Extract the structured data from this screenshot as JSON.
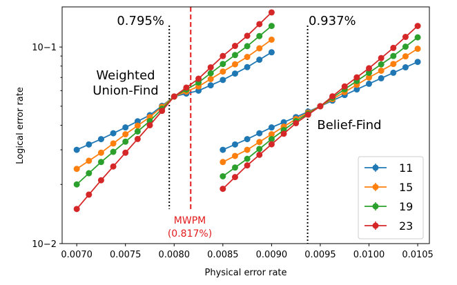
{
  "chart_data": {
    "type": "line",
    "xlabel": "Physical error rate",
    "ylabel": "Logical error rate",
    "xlim": [
      0.00685,
      0.01062
    ],
    "ylim": [
      0.01,
      0.16
    ],
    "yscale": "log",
    "xticks": [
      0.007,
      0.0075,
      0.008,
      0.0085,
      0.009,
      0.0095,
      0.01,
      0.0105
    ],
    "xtick_labels": [
      "0.0070",
      "0.0075",
      "0.0080",
      "0.0085",
      "0.0090",
      "0.0095",
      "0.0100",
      "0.0105"
    ],
    "ytick_labels": [
      "10−2",
      "10−1"
    ],
    "yticks": [
      0.01,
      0.1
    ],
    "legend_position": "lower-right",
    "series": [
      {
        "name": "11",
        "color": "#1f77b4"
      },
      {
        "name": "15",
        "color": "#ff7f0e"
      },
      {
        "name": "19",
        "color": "#2ca02c"
      },
      {
        "name": "23",
        "color": "#d62728"
      }
    ],
    "groups": [
      {
        "label": "Weighted Union-Find",
        "x": [
          0.007,
          0.00725,
          0.0075,
          0.00775,
          0.008,
          0.00825,
          0.0085,
          0.00875,
          0.009
        ],
        "series_values": [
          [
            0.03,
            0.034,
            0.039,
            0.045,
            0.056,
            0.06,
            0.068,
            0.079,
            0.094
          ],
          [
            0.024,
            0.029,
            0.036,
            0.044,
            0.056,
            0.063,
            0.075,
            0.089,
            0.109
          ],
          [
            0.02,
            0.026,
            0.033,
            0.042,
            0.056,
            0.066,
            0.082,
            0.101,
            0.128
          ],
          [
            0.015,
            0.021,
            0.029,
            0.04,
            0.056,
            0.069,
            0.09,
            0.114,
            0.15
          ]
        ]
      },
      {
        "label": "Belief-Find",
        "x": [
          0.0085,
          0.00875,
          0.009,
          0.00925,
          0.0095,
          0.00975,
          0.01,
          0.01025,
          0.0105
        ],
        "series_values": [
          [
            0.03,
            0.034,
            0.039,
            0.044,
            0.05,
            0.057,
            0.065,
            0.074,
            0.084
          ],
          [
            0.026,
            0.03,
            0.036,
            0.043,
            0.05,
            0.059,
            0.07,
            0.082,
            0.098
          ],
          [
            0.022,
            0.027,
            0.034,
            0.042,
            0.05,
            0.061,
            0.074,
            0.09,
            0.112
          ],
          [
            0.019,
            0.025,
            0.032,
            0.041,
            0.05,
            0.063,
            0.078,
            0.099,
            0.128
          ]
        ]
      }
    ],
    "vlines": [
      {
        "x": 0.00795,
        "style": "dotted",
        "color": "#000000",
        "label": "0.795%"
      },
      {
        "x": 0.00817,
        "style": "dashed",
        "color": "#e41a1c",
        "label": "MWPM (0.817%)"
      },
      {
        "x": 0.00937,
        "style": "dotted",
        "color": "#000000",
        "label": "0.937%"
      }
    ],
    "annotations": {
      "wuf_line1": "Weighted",
      "wuf_line2": "Union-Find",
      "bf": "Belief-Find",
      "thr_left": "0.795%",
      "thr_right": "0.937%",
      "mwpm_line1": "MWPM",
      "mwpm_line2": "(0.817%)"
    }
  }
}
